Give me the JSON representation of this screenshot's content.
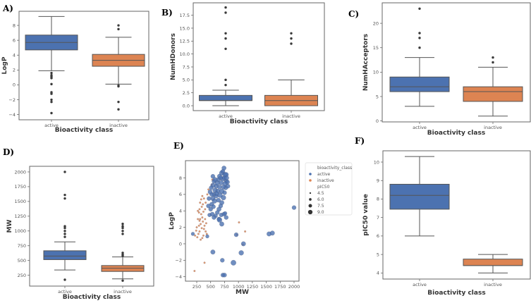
{
  "colors": {
    "active": "#4c72b0",
    "inactive": "#dd8452",
    "line": "#555555"
  },
  "chart_data": [
    {
      "id": "A",
      "panel_label": "A)",
      "type": "box",
      "ylabel": "LogP",
      "xlabel": "Bioactivity class",
      "categories": [
        "active",
        "inactive"
      ],
      "ylim": [
        -4.7,
        9.9
      ],
      "yticks": [
        -4,
        -2,
        0,
        2,
        4,
        6,
        8
      ],
      "ytick_labels": [
        "−4",
        "−2",
        "0",
        "2",
        "4",
        "6",
        "8"
      ],
      "boxes": [
        {
          "whislo": 1.9,
          "q1": 4.7,
          "med": 5.7,
          "q3": 6.7,
          "whishi": 9.2,
          "fliers": [
            1.6,
            1.3,
            1.1,
            0.9,
            0.1,
            -1.0,
            -1.2,
            -2.0,
            -2.3,
            -3.8
          ]
        },
        {
          "whislo": 0.1,
          "q1": 2.5,
          "med": 3.3,
          "q3": 4.1,
          "whishi": 6.4,
          "fliers": [
            8.0,
            7.5,
            -0.1,
            -0.2,
            -2.3,
            -3.3
          ]
        }
      ]
    },
    {
      "id": "B",
      "panel_label": "B)",
      "type": "box",
      "ylabel": "NumHDonors",
      "xlabel": "Bioactivity class",
      "categories": [
        "active",
        "inactive"
      ],
      "ylim": [
        -0.95,
        19.9
      ],
      "yticks": [
        0,
        2.5,
        5,
        7.5,
        10,
        12.5,
        15,
        17.5
      ],
      "ytick_labels": [
        "0.0",
        "2.5",
        "5.0",
        "7.5",
        "10.0",
        "12.5",
        "15.0",
        "17.5"
      ],
      "boxes": [
        {
          "whislo": 0,
          "q1": 1,
          "med": 1,
          "q3": 2,
          "whishi": 3,
          "fliers": [
            4,
            5,
            11,
            13,
            14,
            18,
            19
          ]
        },
        {
          "whislo": 0,
          "q1": 0,
          "med": 1,
          "q3": 2,
          "whishi": 5,
          "fliers": [
            12,
            13,
            14
          ]
        }
      ]
    },
    {
      "id": "C",
      "panel_label": "C)",
      "type": "box",
      "ylabel": "NumHAcceptors",
      "xlabel": "Bioactivity class",
      "categories": [
        "active",
        "inactive"
      ],
      "ylim": [
        -0.2,
        24.2
      ],
      "yticks": [
        0,
        5,
        10,
        15,
        20
      ],
      "ytick_labels": [
        "0",
        "5",
        "10",
        "15",
        "20"
      ],
      "boxes": [
        {
          "whislo": 3,
          "q1": 6,
          "med": 7,
          "q3": 9,
          "whishi": 13,
          "fliers": [
            15,
            17,
            18,
            23
          ]
        },
        {
          "whislo": 1,
          "q1": 4,
          "med": 6,
          "q3": 7,
          "whishi": 11,
          "fliers": [
            12,
            13
          ]
        }
      ]
    },
    {
      "id": "D",
      "panel_label": "D)",
      "type": "box",
      "ylabel": "MW",
      "xlabel": "Bioactivity class",
      "categories": [
        "active",
        "inactive"
      ],
      "ylim": [
        67,
        2095
      ],
      "yticks": [
        250,
        500,
        750,
        1000,
        1250,
        1500,
        1750,
        2000
      ],
      "ytick_labels": [
        "250",
        "500",
        "750",
        "1000",
        "1250",
        "1500",
        "1750",
        "2000"
      ],
      "boxes": [
        {
          "whislo": 340,
          "q1": 515,
          "med": 575,
          "q3": 665,
          "whishi": 815,
          "fliers": [
            175,
            900,
            950,
            1000,
            1050,
            1080,
            1550,
            1610,
            2000
          ]
        },
        {
          "whislo": 190,
          "q1": 315,
          "med": 370,
          "q3": 415,
          "whishi": 560,
          "fliers": [
            160,
            580,
            600,
            630,
            950,
            1000,
            1050,
            1080,
            1120
          ]
        }
      ]
    },
    {
      "id": "E",
      "panel_label": "E)",
      "type": "scatter",
      "xlabel": "MW",
      "ylabel": "LogP",
      "xlim": [
        47,
        2089
      ],
      "ylim": [
        -4.54,
        10.1
      ],
      "xticks": [
        250,
        500,
        750,
        1000,
        1250,
        1500,
        1750,
        2000
      ],
      "xtick_labels": [
        "250",
        "500",
        "750",
        "1000",
        "1250",
        "1500",
        "1750",
        "2000"
      ],
      "yticks": [
        -4,
        -2,
        0,
        2,
        4,
        6,
        8
      ],
      "ytick_labels": [
        "−4",
        "−2",
        "0",
        "2",
        "4",
        "6",
        "8"
      ],
      "legend": {
        "hue_title": "bioactivity_class",
        "hue_items": [
          "active",
          "inactive"
        ],
        "size_title": "pIC50",
        "size_items": [
          "4.5",
          "6.0",
          "7.5",
          "9.0"
        ],
        "placement": "outside-right"
      },
      "series": [
        {
          "name": "inactive",
          "points": [
            [
              250,
              2.0,
              4.5
            ],
            [
              270,
              3.0,
              4.5
            ],
            [
              290,
              3.8,
              4.5
            ],
            [
              300,
              4.2,
              4.5
            ],
            [
              310,
              3.0,
              4.5
            ],
            [
              320,
              2.4,
              4.5
            ],
            [
              330,
              3.6,
              4.5
            ],
            [
              340,
              4.5,
              4.5
            ],
            [
              350,
              3.2,
              4.5
            ],
            [
              360,
              2.7,
              4.5
            ],
            [
              370,
              3.9,
              4.5
            ],
            [
              380,
              1.8,
              4.5
            ],
            [
              390,
              2.2,
              4.5
            ],
            [
              400,
              3.0,
              4.5
            ],
            [
              410,
              1.5,
              4.5
            ],
            [
              420,
              2.5,
              4.5
            ],
            [
              430,
              1.2,
              4.5
            ],
            [
              300,
              1.5,
              4.5
            ],
            [
              280,
              1.2,
              4.5
            ],
            [
              260,
              0.8,
              4.5
            ],
            [
              320,
              0.5,
              4.5
            ],
            [
              350,
              0.7,
              4.5
            ],
            [
              330,
              5.4,
              4.5
            ],
            [
              350,
              5.8,
              4.5
            ],
            [
              380,
              5.5,
              4.5
            ],
            [
              410,
              5.0,
              4.5
            ],
            [
              440,
              6.0,
              4.5
            ],
            [
              460,
              6.6,
              4.5
            ],
            [
              520,
              7.2,
              4.5
            ],
            [
              530,
              7.8,
              4.5
            ],
            [
              240,
              1.6,
              4.5
            ],
            [
              220,
              1.0,
              4.5
            ],
            [
              300,
              2.8,
              4.5
            ],
            [
              290,
              2.2,
              4.5
            ],
            [
              360,
              4.8,
              4.5
            ],
            [
              400,
              4.2,
              4.5
            ],
            [
              270,
              4.0,
              4.5
            ],
            [
              310,
              5.0,
              4.5
            ],
            [
              340,
              1.9,
              4.5
            ],
            [
              370,
              1.0,
              4.5
            ],
            [
              1010,
              2.6,
              4.5
            ],
            [
              1120,
              1.5,
              4.5
            ],
            [
              970,
              1.1,
              4.5
            ],
            [
              1080,
              -0.1,
              4.5
            ],
            [
              390,
              -2.3,
              4.5
            ],
            [
              210,
              -3.3,
              4.5
            ]
          ]
        },
        {
          "name": "active",
          "points": [
            [
              480,
              3.5,
              7.5
            ],
            [
              500,
              4.2,
              8
            ],
            [
              520,
              4.8,
              8.2
            ],
            [
              540,
              5.5,
              8.5
            ],
            [
              560,
              6.0,
              8
            ],
            [
              580,
              6.5,
              8.8
            ],
            [
              600,
              7.0,
              8.2
            ],
            [
              620,
              7.4,
              9
            ],
            [
              640,
              7.8,
              8
            ],
            [
              660,
              8.2,
              8.5
            ],
            [
              700,
              8.6,
              9
            ],
            [
              720,
              8.8,
              8
            ],
            [
              740,
              9.2,
              8.3
            ],
            [
              760,
              8.4,
              9
            ],
            [
              780,
              7.6,
              8
            ],
            [
              800,
              7.5,
              8.5
            ],
            [
              770,
              6.8,
              8.2
            ],
            [
              750,
              6.2,
              8
            ],
            [
              730,
              5.6,
              9
            ],
            [
              700,
              5.0,
              8.5
            ],
            [
              680,
              4.6,
              8
            ],
            [
              650,
              4.2,
              8.4
            ],
            [
              620,
              3.8,
              8
            ],
            [
              590,
              3.4,
              7.5
            ],
            [
              560,
              3.2,
              8
            ],
            [
              530,
              3.6,
              8.2
            ],
            [
              550,
              4.5,
              8
            ],
            [
              570,
              5.2,
              8.8
            ],
            [
              600,
              5.8,
              8
            ],
            [
              630,
              6.4,
              8.5
            ],
            [
              660,
              6.9,
              8
            ],
            [
              690,
              7.4,
              8.3
            ],
            [
              720,
              7.9,
              9
            ],
            [
              750,
              8.0,
              8
            ],
            [
              780,
              8.4,
              8.6
            ],
            [
              520,
              6.0,
              8
            ],
            [
              540,
              7.1,
              8.5
            ],
            [
              540,
              8.2,
              8
            ],
            [
              560,
              7.6,
              8
            ],
            [
              610,
              6.1,
              8
            ],
            [
              640,
              5.3,
              8.2
            ],
            [
              670,
              5.9,
              8.8
            ],
            [
              700,
              6.4,
              9
            ],
            [
              730,
              6.9,
              8
            ],
            [
              760,
              7.3,
              8.5
            ],
            [
              790,
              8.0,
              8
            ],
            [
              810,
              7.0,
              8.1
            ],
            [
              690,
              3.5,
              7.8
            ],
            [
              740,
              3.6,
              8
            ],
            [
              760,
              3.7,
              7.5
            ],
            [
              780,
              3.2,
              8
            ],
            [
              650,
              3.0,
              8
            ],
            [
              700,
              2.4,
              8.5
            ],
            [
              660,
              2.9,
              9
            ],
            [
              460,
              4.6,
              8
            ],
            [
              470,
              5.5,
              8
            ],
            [
              490,
              6.3,
              8.2
            ],
            [
              510,
              6.8,
              8
            ],
            [
              580,
              7.8,
              8.5
            ],
            [
              680,
              8.0,
              8
            ],
            [
              2000,
              4.4,
              8
            ],
            [
              1550,
              1.2,
              8.5
            ],
            [
              1610,
              1.3,
              8.5
            ],
            [
              960,
              1.1,
              8
            ],
            [
              1090,
              0.0,
              8.5
            ],
            [
              1050,
              -1.1,
              9
            ],
            [
              910,
              -2.3,
              9.5
            ],
            [
              540,
              -1.0,
              8.5
            ],
            [
              710,
              -2.0,
              8
            ],
            [
              720,
              -3.8,
              8
            ],
            [
              750,
              -3.8,
              8
            ],
            [
              180,
              1.2,
              7
            ],
            [
              440,
              0.9,
              7
            ]
          ]
        }
      ]
    },
    {
      "id": "F",
      "panel_label": "F)",
      "type": "box",
      "ylabel": "pIC50 value",
      "xlabel": "Bioactivity class",
      "categories": [
        "active",
        "inactive"
      ],
      "ylim": [
        3.67,
        10.61
      ],
      "yticks": [
        4,
        5,
        6,
        7,
        8,
        9,
        10
      ],
      "ytick_labels": [
        "4",
        "5",
        "6",
        "7",
        "8",
        "9",
        "10"
      ],
      "boxes": [
        {
          "whislo": 6.0,
          "q1": 7.45,
          "med": 8.2,
          "q3": 8.8,
          "whishi": 10.3,
          "fliers": []
        },
        {
          "whislo": 4.0,
          "q1": 4.4,
          "med": 4.4,
          "q3": 4.75,
          "whishi": 5.0,
          "fliers": []
        }
      ]
    }
  ]
}
